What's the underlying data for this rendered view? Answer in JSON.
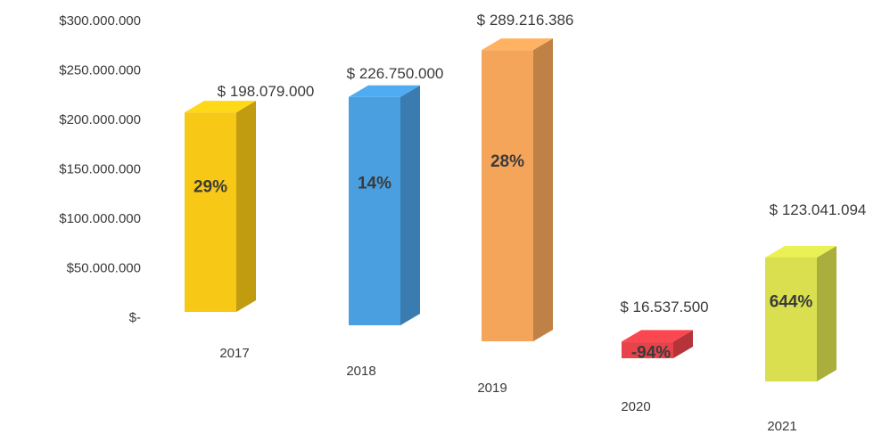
{
  "chart_data": {
    "type": "bar",
    "style": "3d-column",
    "categories": [
      "2017",
      "2018",
      "2019",
      "2020",
      "2021"
    ],
    "values": [
      198079000,
      226750000,
      289216386,
      16537500,
      123041094
    ],
    "value_labels": [
      "$ 198.079.000",
      "$ 226.750.000",
      "$ 289.216.386",
      "$ 16.537.500",
      "$ 123.041.094"
    ],
    "growth_labels": [
      "29%",
      "14%",
      "28%",
      "-94%",
      "644%"
    ],
    "colors": [
      "#F7C815",
      "#4A9FE0",
      "#F5A55A",
      "#E8434A",
      "#D9DF4E"
    ],
    "y_ticks": [
      "$300.000.000",
      "$250.000.000",
      "$200.000.000",
      "$150.000.000",
      "$100.000.000",
      "$50.000.000",
      "$-"
    ],
    "ylim": [
      0,
      300000000
    ],
    "grid": false,
    "legend": "none"
  }
}
